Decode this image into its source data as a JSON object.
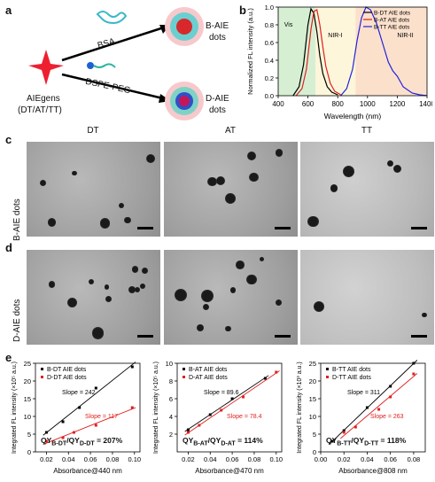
{
  "panel_labels": {
    "a": "a",
    "b": "b",
    "c": "c",
    "d": "d",
    "e": "e"
  },
  "panel_a": {
    "source_label_1": "AIEgens",
    "source_label_2": "(DT/AT/TT)",
    "reagent_top": "BSA",
    "reagent_bottom": "DSPE-PEG",
    "product_top_1": "B-AIE",
    "product_top_2": "dots",
    "product_bottom_1": "D-AIE",
    "product_bottom_2": "dots"
  },
  "panel_b": {
    "ylabel": "Normalized FL intensity (a.u.)",
    "xlabel": "Wavelength (nm)",
    "regions": [
      "Vis",
      "NIR-I",
      "NIR-II"
    ],
    "legend": [
      "B-DT AIE dots",
      "B-AT AIE dots",
      "B-TT AIE dots"
    ],
    "colors": {
      "dt": "#000000",
      "at": "#e02020",
      "tt": "#2222dd"
    }
  },
  "tem": {
    "col_titles": [
      "DT",
      "AT",
      "TT"
    ],
    "row_labels": [
      "B-AIE dots",
      "D-AIE dots"
    ]
  },
  "chart_data": [
    {
      "type": "line",
      "ylabel": "Normalized FL intensity (a.u.)",
      "xlabel": "Wavelength (nm)",
      "xlim": [
        400,
        1400
      ],
      "ylim": [
        0,
        1.0
      ],
      "xticks": [
        400,
        600,
        800,
        1000,
        1200,
        1400
      ],
      "yticks": [
        0.0,
        0.2,
        0.4,
        0.6,
        0.8,
        1.0
      ],
      "series": [
        {
          "name": "B-DT AIE dots",
          "x": [
            500,
            540,
            570,
            600,
            620,
            640,
            660,
            680,
            700,
            730,
            760,
            800
          ],
          "y": [
            0.0,
            0.1,
            0.35,
            0.8,
            0.98,
            0.93,
            0.72,
            0.45,
            0.25,
            0.1,
            0.04,
            0.01
          ]
        },
        {
          "name": "B-AT AIE dots",
          "x": [
            520,
            560,
            590,
            620,
            640,
            660,
            680,
            700,
            720,
            750,
            780,
            820
          ],
          "y": [
            0.0,
            0.08,
            0.3,
            0.75,
            0.95,
            0.97,
            0.8,
            0.55,
            0.33,
            0.14,
            0.05,
            0.01
          ]
        },
        {
          "name": "B-TT AIE dots",
          "x": [
            820,
            860,
            900,
            930,
            960,
            990,
            1020,
            1060,
            1100,
            1140,
            1170,
            1200,
            1240,
            1300,
            1350,
            1400
          ],
          "y": [
            0.0,
            0.08,
            0.3,
            0.62,
            0.88,
            1.0,
            0.97,
            0.82,
            0.6,
            0.38,
            0.28,
            0.22,
            0.1,
            0.03,
            0.01,
            0.0
          ]
        }
      ]
    },
    {
      "type": "scatter",
      "ylabel": "Integrated FL intensity (×10⁵ a.u.)",
      "xlabel": "Absorbance@440 nm",
      "xlim": [
        0.01,
        0.105
      ],
      "ylim": [
        0,
        25
      ],
      "xticks": [
        0.02,
        0.04,
        0.06,
        0.08,
        0.1
      ],
      "yticks": [
        0,
        5,
        10,
        15,
        20,
        25
      ],
      "legend": [
        "B-DT AIE dots",
        "D-DT AIE dots"
      ],
      "slopes": [
        "Slope = 242",
        "Slope = 117"
      ],
      "qy_ratio": "QY<sub>B-DT</sub>/QY<sub>D-DT</sub> = 207%",
      "series": [
        {
          "name": "B-DT AIE dots",
          "x": [
            0.02,
            0.035,
            0.05,
            0.065,
            0.098
          ],
          "y": [
            5.5,
            8.5,
            12.5,
            18.0,
            24.0
          ]
        },
        {
          "name": "D-DT AIE dots",
          "x": [
            0.02,
            0.035,
            0.045,
            0.065,
            0.098
          ],
          "y": [
            3.0,
            4.0,
            5.5,
            7.5,
            12.5
          ]
        }
      ]
    },
    {
      "type": "scatter",
      "ylabel": "Integrated FL intensity (×10⁵ a.u.)",
      "xlabel": "Absorbance@470 nm",
      "xlim": [
        0.01,
        0.105
      ],
      "ylim": [
        0,
        10
      ],
      "xticks": [
        0.02,
        0.04,
        0.06,
        0.08,
        0.1
      ],
      "yticks": [
        2,
        4,
        6,
        8,
        10
      ],
      "legend": [
        "B-AT AIE dots",
        "D-AT AIE dots"
      ],
      "slopes": [
        "Slope = 89.6",
        "Slope = 78.4"
      ],
      "qy_ratio": "QY<sub>B-AT</sub>/QY<sub>D-AT</sub> = 114%",
      "series": [
        {
          "name": "B-AT AIE dots",
          "x": [
            0.02,
            0.04,
            0.06,
            0.09
          ],
          "y": [
            2.5,
            4.2,
            6.0,
            8.3
          ]
        },
        {
          "name": "D-AT AIE dots",
          "x": [
            0.02,
            0.03,
            0.05,
            0.07,
            0.1
          ],
          "y": [
            2.2,
            3.0,
            4.7,
            6.2,
            9.0
          ]
        }
      ]
    },
    {
      "type": "scatter",
      "ylabel": "Integrated FL intensity (×10³ a.u.)",
      "xlabel": "Absorbance@808 nm",
      "xlim": [
        0.0,
        0.09
      ],
      "ylim": [
        0,
        25
      ],
      "xticks": [
        0.0,
        0.02,
        0.04,
        0.06,
        0.08
      ],
      "yticks": [
        0,
        5,
        10,
        15,
        20,
        25
      ],
      "legend": [
        "B-TT AIE dots",
        "D-TT AIE dots"
      ],
      "slopes": [
        "Slope = 311",
        "Slope = 263"
      ],
      "qy_ratio": "QY<sub>B-TT</sub>/QY<sub>D-TT</sub> = 118%",
      "series": [
        {
          "name": "B-TT AIE dots",
          "x": [
            0.01,
            0.02,
            0.04,
            0.06,
            0.08
          ],
          "y": [
            3.0,
            6.0,
            12.5,
            18.5,
            25.0
          ]
        },
        {
          "name": "D-TT AIE dots",
          "x": [
            0.02,
            0.03,
            0.05,
            0.06,
            0.08
          ],
          "y": [
            5.5,
            7.0,
            12.0,
            15.5,
            22.0
          ]
        }
      ]
    }
  ]
}
